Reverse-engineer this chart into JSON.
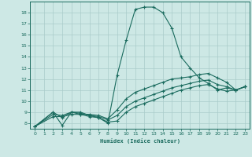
{
  "background_color": "#cde8e5",
  "grid_color": "#aaccca",
  "line_color": "#1a6b5e",
  "xlabel": "Humidex (Indice chaleur)",
  "xlim": [
    -0.5,
    23.5
  ],
  "ylim": [
    7.5,
    19.0
  ],
  "yticks": [
    8,
    9,
    10,
    11,
    12,
    13,
    14,
    15,
    16,
    17,
    18
  ],
  "xticks": [
    0,
    1,
    2,
    3,
    4,
    5,
    6,
    7,
    8,
    9,
    10,
    11,
    12,
    13,
    14,
    15,
    16,
    17,
    18,
    19,
    20,
    21,
    22,
    23
  ],
  "line1_x": [
    0,
    2,
    3,
    4,
    5,
    6,
    7,
    8,
    9,
    10,
    11,
    12,
    13,
    14,
    15,
    16,
    17,
    18,
    19,
    20,
    21,
    22,
    23
  ],
  "line1_y": [
    7.7,
    9.0,
    8.5,
    9.0,
    9.0,
    8.7,
    8.5,
    8.0,
    12.3,
    15.5,
    18.3,
    18.5,
    18.5,
    18.0,
    16.6,
    14.0,
    13.0,
    12.1,
    11.6,
    11.0,
    11.2,
    11.0,
    11.3
  ],
  "line2_x": [
    0,
    2,
    3,
    4,
    5,
    6,
    7,
    8,
    9,
    10,
    11,
    12,
    13,
    14,
    15,
    16,
    17,
    18,
    19,
    20,
    21,
    22,
    23
  ],
  "line2_y": [
    7.7,
    8.6,
    8.6,
    8.8,
    8.8,
    8.6,
    8.5,
    8.1,
    8.2,
    9.0,
    9.5,
    9.8,
    10.1,
    10.4,
    10.7,
    11.0,
    11.2,
    11.4,
    11.5,
    11.1,
    10.9,
    11.0,
    11.3
  ],
  "line3_x": [
    0,
    2,
    3,
    4,
    5,
    6,
    7,
    8,
    9,
    10,
    11,
    12,
    13,
    14,
    15,
    16,
    17,
    18,
    19,
    20,
    21,
    22,
    23
  ],
  "line3_y": [
    7.7,
    8.8,
    8.7,
    9.0,
    8.9,
    8.7,
    8.6,
    8.3,
    8.7,
    9.5,
    10.0,
    10.3,
    10.6,
    10.9,
    11.2,
    11.4,
    11.6,
    11.8,
    11.9,
    11.5,
    11.3,
    11.0,
    11.3
  ],
  "line4_x": [
    0,
    2,
    3,
    4,
    5,
    6,
    7,
    8,
    9,
    10,
    11,
    12,
    13,
    14,
    15,
    16,
    17,
    18,
    19,
    20,
    21,
    22,
    23
  ],
  "line4_y": [
    7.7,
    9.0,
    7.8,
    9.0,
    8.8,
    8.8,
    8.7,
    8.4,
    9.2,
    10.2,
    10.8,
    11.1,
    11.4,
    11.7,
    12.0,
    12.1,
    12.2,
    12.4,
    12.5,
    12.1,
    11.7,
    11.0,
    11.3
  ]
}
